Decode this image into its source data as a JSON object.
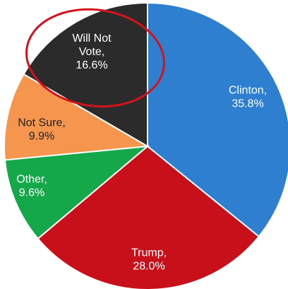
{
  "chart_data": {
    "type": "pie",
    "title": "",
    "slices": [
      {
        "label": "Clinton",
        "value": 35.8,
        "value_label": "35.8%",
        "color": "#2f7fd0",
        "label_color": "#ffffff"
      },
      {
        "label": "Trump",
        "value": 28.0,
        "value_label": "28.0%",
        "color": "#c8101a",
        "label_color": "#ffffff"
      },
      {
        "label": "Other",
        "value": 9.6,
        "value_label": "9.6%",
        "color": "#14a84b",
        "label_color": "#ffffff"
      },
      {
        "label": "Not Sure",
        "value": 9.9,
        "value_label": "9.9%",
        "color": "#f5954e",
        "label_color": "#222222"
      },
      {
        "label": "Will Not Vote",
        "value": 16.6,
        "value_label": "16.6%",
        "color": "#2b2b2b",
        "label_color": "#ffffff"
      }
    ],
    "start_angle": "12 o'clock",
    "direction": "clockwise",
    "highlight": {
      "target": "Will Not Vote",
      "shape": "ellipse",
      "color": "#d4121c"
    }
  }
}
